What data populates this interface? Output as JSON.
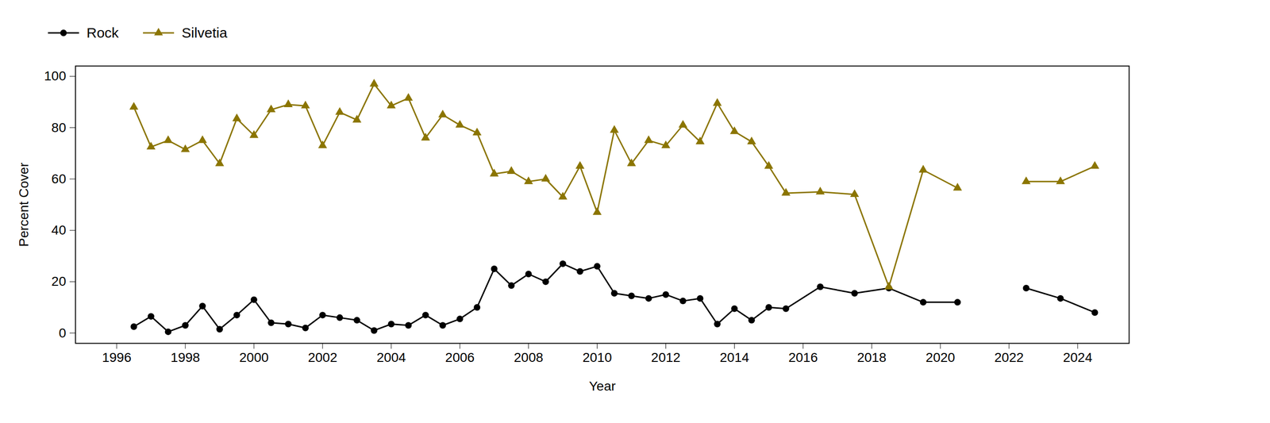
{
  "chart_data": {
    "type": "line",
    "xlabel": "Year",
    "ylabel": "Percent Cover",
    "x": [
      1996.5,
      1997.0,
      1997.5,
      1998.0,
      1998.5,
      1999.0,
      1999.5,
      2000.0,
      2000.5,
      2001.0,
      2001.5,
      2002.0,
      2002.5,
      2003.0,
      2003.5,
      2004.0,
      2004.5,
      2005.0,
      2005.5,
      2006.0,
      2006.5,
      2007.0,
      2007.5,
      2008.0,
      2008.5,
      2009.0,
      2009.5,
      2010.0,
      2010.5,
      2011.0,
      2011.5,
      2012.0,
      2012.5,
      2013.0,
      2013.5,
      2014.0,
      2014.5,
      2015.0,
      2015.5,
      2016.5,
      2017.5,
      2018.5,
      2019.5,
      2020.5,
      2021.5,
      2022.5,
      2023.5,
      2024.5
    ],
    "series": [
      {
        "name": "Rock",
        "color": "#000000",
        "marker": "circle",
        "values": [
          2.5,
          6.5,
          0.5,
          3,
          10.5,
          1.5,
          7,
          13,
          4,
          3.5,
          2,
          7,
          6,
          5,
          1,
          3.5,
          3,
          7,
          3,
          5.5,
          10,
          25,
          18.5,
          23,
          20,
          27,
          24,
          26,
          15.5,
          14.5,
          13.5,
          15,
          12.5,
          13.5,
          3.5,
          9.5,
          5,
          10,
          9.5,
          18,
          15.5,
          17.5,
          12,
          12,
          null,
          17.5,
          13.5,
          8
        ]
      },
      {
        "name": "Silvetia",
        "color": "#8B7500",
        "marker": "triangle",
        "values": [
          88,
          72.5,
          75,
          71.5,
          75,
          66,
          83.5,
          77,
          87,
          89,
          88.5,
          73,
          86,
          83,
          97,
          88.5,
          91.5,
          76,
          85,
          81,
          78,
          62,
          63,
          59,
          60,
          53,
          65,
          47,
          79,
          66,
          75,
          73,
          81,
          74.5,
          89.5,
          78.5,
          74.5,
          65,
          54.5,
          55,
          54,
          18,
          63.5,
          56.5,
          null,
          59,
          59,
          65
        ]
      }
    ],
    "xlim": [
      1994.8,
      2025.5
    ],
    "ylim": [
      -4,
      104
    ],
    "xticks": [
      1996,
      1998,
      2000,
      2002,
      2004,
      2006,
      2008,
      2010,
      2012,
      2014,
      2016,
      2018,
      2020,
      2022,
      2024
    ],
    "yticks": [
      0,
      20,
      40,
      60,
      80,
      100
    ],
    "legend": "top-left"
  }
}
